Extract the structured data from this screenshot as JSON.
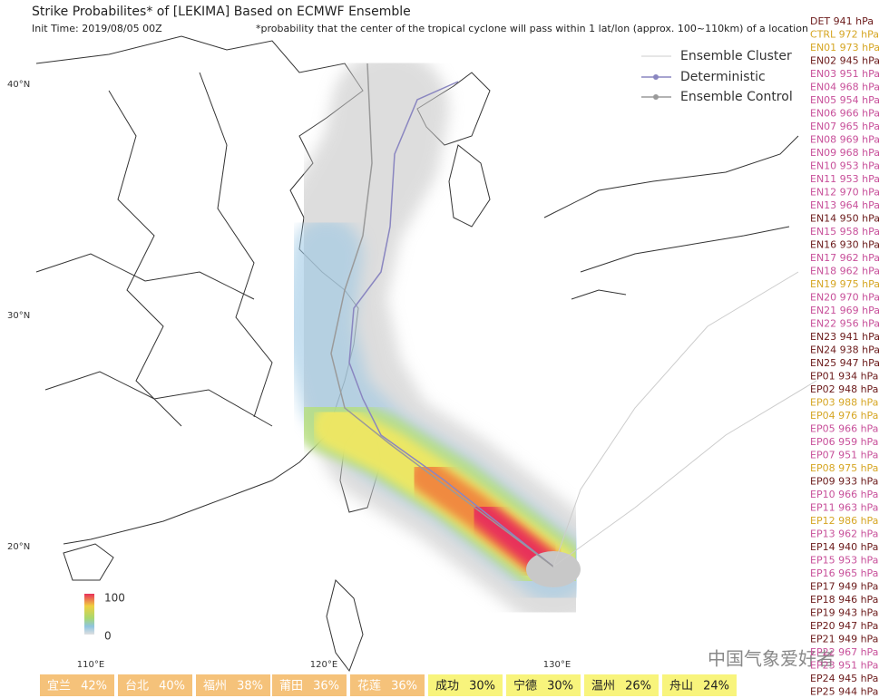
{
  "title": "Strike Probabilites* of [LEKIMA] Based on ECMWF Ensemble",
  "init_time": "Init Time: 2019/08/05 00Z",
  "note": "*probability that the center of the tropical cyclone will pass within 1 lat/lon (approx. 100~110km) of a location",
  "legend": [
    "Ensemble Cluster",
    "Deterministic",
    "Ensemble Control"
  ],
  "lat_labels": [
    "40°N",
    "30°N",
    "20°N"
  ],
  "lon_labels": [
    "110°E",
    "120°E",
    "130°E"
  ],
  "colorbar": {
    "max": "100",
    "min": "0"
  },
  "watermark": "中国气象爱好者",
  "members": [
    {
      "text": "DET 941 hPa",
      "color": "#6b1a1a"
    },
    {
      "text": "CTRL 972 hPa",
      "color": "#d6a624"
    },
    {
      "text": "EN01 973 hPa",
      "color": "#d6a624"
    },
    {
      "text": "EN02 945 hPa",
      "color": "#6b1a1a"
    },
    {
      "text": "EN03 951 hPa",
      "color": "#c8509a"
    },
    {
      "text": "EN04 968 hPa",
      "color": "#c8509a"
    },
    {
      "text": "EN05 954 hPa",
      "color": "#c8509a"
    },
    {
      "text": "EN06 966 hPa",
      "color": "#c8509a"
    },
    {
      "text": "EN07 965 hPa",
      "color": "#c8509a"
    },
    {
      "text": "EN08 969 hPa",
      "color": "#c8509a"
    },
    {
      "text": "EN09 968 hPa",
      "color": "#c8509a"
    },
    {
      "text": "EN10 953 hPa",
      "color": "#c8509a"
    },
    {
      "text": "EN11 953 hPa",
      "color": "#c8509a"
    },
    {
      "text": "EN12 970 hPa",
      "color": "#c8509a"
    },
    {
      "text": "EN13 964 hPa",
      "color": "#c8509a"
    },
    {
      "text": "EN14 950 hPa",
      "color": "#6b1a1a"
    },
    {
      "text": "EN15 958 hPa",
      "color": "#c8509a"
    },
    {
      "text": "EN16 930 hPa",
      "color": "#6b1a1a"
    },
    {
      "text": "EN17 962 hPa",
      "color": "#c8509a"
    },
    {
      "text": "EN18 962 hPa",
      "color": "#c8509a"
    },
    {
      "text": "EN19 975 hPa",
      "color": "#d6a624"
    },
    {
      "text": "EN20 970 hPa",
      "color": "#c8509a"
    },
    {
      "text": "EN21 969 hPa",
      "color": "#c8509a"
    },
    {
      "text": "EN22 956 hPa",
      "color": "#c8509a"
    },
    {
      "text": "EN23 941 hPa",
      "color": "#6b1a1a"
    },
    {
      "text": "EN24 938 hPa",
      "color": "#6b1a1a"
    },
    {
      "text": "EN25 947 hPa",
      "color": "#6b1a1a"
    },
    {
      "text": "EP01 934 hPa",
      "color": "#6b1a1a"
    },
    {
      "text": "EP02 948 hPa",
      "color": "#6b1a1a"
    },
    {
      "text": "EP03 988 hPa",
      "color": "#d6a624"
    },
    {
      "text": "EP04 976 hPa",
      "color": "#d6a624"
    },
    {
      "text": "EP05 966 hPa",
      "color": "#c8509a"
    },
    {
      "text": "EP06 959 hPa",
      "color": "#c8509a"
    },
    {
      "text": "EP07 951 hPa",
      "color": "#c8509a"
    },
    {
      "text": "EP08 975 hPa",
      "color": "#d6a624"
    },
    {
      "text": "EP09 933 hPa",
      "color": "#6b1a1a"
    },
    {
      "text": "EP10 966 hPa",
      "color": "#c8509a"
    },
    {
      "text": "EP11 963 hPa",
      "color": "#c8509a"
    },
    {
      "text": "EP12 986 hPa",
      "color": "#d6a624"
    },
    {
      "text": "EP13 962 hPa",
      "color": "#c8509a"
    },
    {
      "text": "EP14 940 hPa",
      "color": "#6b1a1a"
    },
    {
      "text": "EP15 953 hPa",
      "color": "#c8509a"
    },
    {
      "text": "EP16 965 hPa",
      "color": "#c8509a"
    },
    {
      "text": "EP17 949 hPa",
      "color": "#6b1a1a"
    },
    {
      "text": "EP18 946 hPa",
      "color": "#6b1a1a"
    },
    {
      "text": "EP19 943 hPa",
      "color": "#6b1a1a"
    },
    {
      "text": "EP20 947 hPa",
      "color": "#6b1a1a"
    },
    {
      "text": "EP21 949 hPa",
      "color": "#6b1a1a"
    },
    {
      "text": "EP22 967 hPa",
      "color": "#c8509a"
    },
    {
      "text": "EP23 951 hPa",
      "color": "#c8509a"
    },
    {
      "text": "EP24 945 hPa",
      "color": "#6b1a1a"
    },
    {
      "text": "EP25 944 hPa",
      "color": "#6b1a1a"
    }
  ],
  "locations": [
    {
      "name": "宜兰",
      "probability": "42%",
      "color": "#f5c27a",
      "text_color": "#ffffff"
    },
    {
      "name": "台北",
      "probability": "40%",
      "color": "#f5c27a",
      "text_color": "#ffffff"
    },
    {
      "name": "福州",
      "probability": "38%",
      "color": "#f5c27a",
      "text_color": "#ffffff"
    },
    {
      "name": "莆田",
      "probability": "36%",
      "color": "#f5c27a",
      "text_color": "#ffffff"
    },
    {
      "name": "花莲",
      "probability": "36%",
      "color": "#f5c27a",
      "text_color": "#ffffff"
    },
    {
      "name": "成功",
      "probability": "30%",
      "color": "#f8f47c",
      "text_color": "#222222"
    },
    {
      "name": "宁德",
      "probability": "30%",
      "color": "#f8f47c",
      "text_color": "#222222"
    },
    {
      "name": "温州",
      "probability": "26%",
      "color": "#f8f47c",
      "text_color": "#222222"
    },
    {
      "name": "舟山",
      "probability": "24%",
      "color": "#f8f47c",
      "text_color": "#222222"
    }
  ]
}
